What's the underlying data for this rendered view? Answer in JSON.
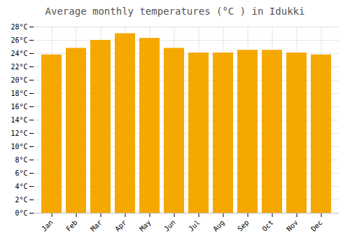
{
  "chart_data": {
    "type": "bar",
    "title": "Average monthly temperatures (°C ) in Idukki",
    "categories": [
      "Jan",
      "Feb",
      "Mar",
      "Apr",
      "May",
      "Jun",
      "Jul",
      "Aug",
      "Sep",
      "Oct",
      "Nov",
      "Dec"
    ],
    "values": [
      23.8,
      24.8,
      26.0,
      27.0,
      26.3,
      24.8,
      24.1,
      24.1,
      24.5,
      24.5,
      24.1,
      23.8
    ],
    "color": "#F5A800",
    "ylim": [
      0,
      28
    ],
    "yticks": [
      {
        "value": 0,
        "label": "0°C"
      },
      {
        "value": 2,
        "label": "2°C"
      },
      {
        "value": 4,
        "label": "4°C"
      },
      {
        "value": 6,
        "label": "6°C"
      },
      {
        "value": 8,
        "label": "8°C"
      },
      {
        "value": 10,
        "label": "10°C"
      },
      {
        "value": 12,
        "label": "12°C"
      },
      {
        "value": 14,
        "label": "14°C"
      },
      {
        "value": 16,
        "label": "16°C"
      },
      {
        "value": 18,
        "label": "18°C"
      },
      {
        "value": 20,
        "label": "20°C"
      },
      {
        "value": 22,
        "label": "22°C"
      },
      {
        "value": 24,
        "label": "24°C"
      },
      {
        "value": 26,
        "label": "26°C"
      },
      {
        "value": 28,
        "label": "28°C"
      }
    ],
    "grid": true
  }
}
